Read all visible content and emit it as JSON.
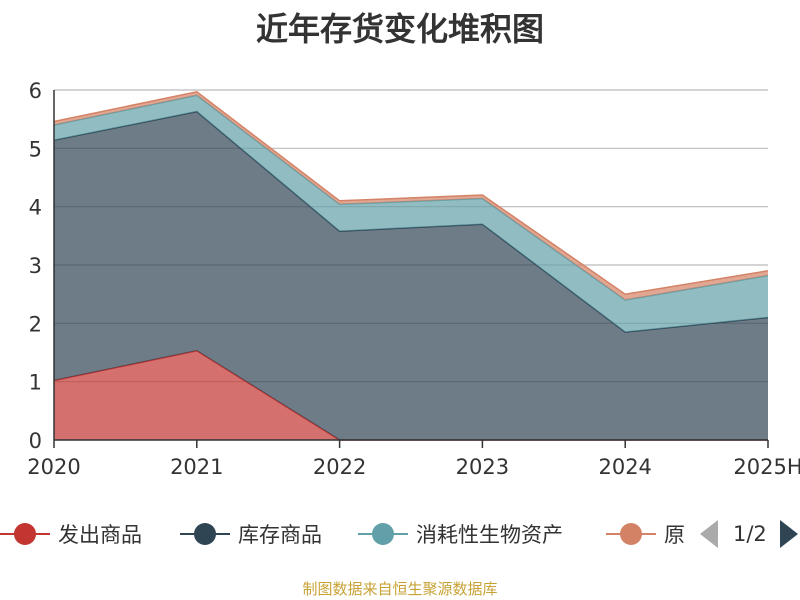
{
  "chart_data": {
    "type": "area",
    "stacked": true,
    "title": "近年存货变化堆积图",
    "ylabel": "",
    "xlabel": "",
    "categories": [
      "2020",
      "2021",
      "2022",
      "2023",
      "2024",
      "2025H"
    ],
    "ylim": [
      0,
      6
    ],
    "yticks": [
      0,
      1,
      2,
      3,
      4,
      5,
      6
    ],
    "grid": true,
    "legend_position": "bottom",
    "series": [
      {
        "name": "发出商品",
        "color": "#c23531",
        "values": [
          1.02,
          1.53,
          0.0,
          0.0,
          0.0,
          0.0
        ]
      },
      {
        "name": "库存商品",
        "color": "#2f4554",
        "values": [
          4.12,
          4.1,
          3.58,
          3.7,
          1.85,
          2.1
        ]
      },
      {
        "name": "消耗性生物资产",
        "color": "#61a0a8",
        "values": [
          0.26,
          0.28,
          0.46,
          0.44,
          0.55,
          0.72
        ]
      },
      {
        "name": "原",
        "color": "#d48265",
        "values": [
          0.06,
          0.06,
          0.06,
          0.06,
          0.1,
          0.08
        ]
      }
    ]
  },
  "legend": {
    "page_text": "1/2"
  },
  "source_note": "制图数据来自恒生聚源数据库"
}
